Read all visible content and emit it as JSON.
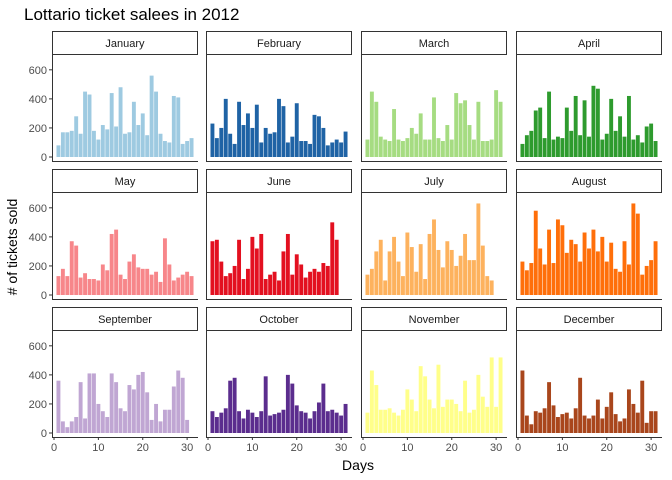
{
  "chart_data": {
    "type": "bar",
    "title": "Lottario ticket salees in 2012",
    "xlabel": "Days",
    "ylabel": "# of tickets sold",
    "xlim": [
      0,
      32
    ],
    "ylim": [
      0,
      640
    ],
    "x_ticks": [
      0,
      10,
      20,
      30
    ],
    "y_ticks": [
      0,
      200,
      400,
      600
    ],
    "grid": false,
    "legend": "none",
    "facets": [
      {
        "name": "January",
        "color": "#9ecae1",
        "values": [
          80,
          170,
          170,
          180,
          280,
          160,
          450,
          430,
          180,
          120,
          220,
          190,
          440,
          210,
          480,
          160,
          170,
          380,
          220,
          300,
          150,
          560,
          450,
          160,
          110,
          100,
          420,
          410,
          90,
          110,
          130
        ]
      },
      {
        "name": "February",
        "color": "#1f63a5",
        "values": [
          230,
          130,
          200,
          400,
          160,
          90,
          380,
          220,
          300,
          200,
          360,
          100,
          200,
          160,
          170,
          400,
          350,
          100,
          140,
          370,
          110,
          110,
          90,
          290,
          280,
          200,
          80,
          100,
          120,
          100,
          175
        ]
      },
      {
        "name": "March",
        "color": "#a6dc82",
        "values": [
          120,
          450,
          380,
          140,
          120,
          110,
          330,
          120,
          110,
          130,
          200,
          160,
          300,
          120,
          120,
          410,
          130,
          110,
          220,
          120,
          440,
          370,
          390,
          220,
          120,
          380,
          110,
          110,
          120,
          460,
          380
        ]
      },
      {
        "name": "April",
        "color": "#2e9b2e",
        "values": [
          90,
          150,
          180,
          320,
          340,
          130,
          450,
          120,
          140,
          130,
          340,
          180,
          420,
          150,
          390,
          140,
          490,
          470,
          120,
          160,
          400,
          180,
          280,
          140,
          420,
          120,
          150,
          100,
          210,
          230,
          110
        ]
      },
      {
        "name": "May",
        "color": "#f7868a",
        "values": [
          130,
          180,
          130,
          370,
          340,
          120,
          150,
          110,
          110,
          100,
          210,
          170,
          420,
          450,
          140,
          110,
          230,
          280,
          190,
          180,
          180,
          140,
          160,
          90,
          390,
          210,
          100,
          120,
          140,
          160,
          130
        ]
      },
      {
        "name": "June",
        "color": "#e31020",
        "values": [
          370,
          380,
          230,
          130,
          150,
          200,
          380,
          110,
          180,
          400,
          320,
          420,
          110,
          140,
          160,
          100,
          300,
          420,
          140,
          280,
          210,
          120,
          160,
          180,
          160,
          220,
          200,
          500,
          380
        ]
      },
      {
        "name": "July",
        "color": "#fdb25e",
        "values": [
          140,
          180,
          300,
          380,
          100,
          300,
          400,
          230,
          130,
          430,
          330,
          160,
          350,
          110,
          420,
          520,
          310,
          190,
          370,
          310,
          200,
          270,
          420,
          240,
          240,
          630,
          340,
          130,
          100
        ]
      },
      {
        "name": "August",
        "color": "#ff6f0a",
        "values": [
          230,
          170,
          220,
          580,
          320,
          210,
          450,
          220,
          520,
          480,
          290,
          380,
          350,
          230,
          430,
          320,
          450,
          300,
          400,
          230,
          360,
          180,
          160,
          370,
          210,
          630,
          560,
          140,
          200,
          240,
          370
        ]
      },
      {
        "name": "September",
        "color": "#c0a6d3",
        "values": [
          360,
          80,
          40,
          80,
          110,
          350,
          100,
          410,
          410,
          200,
          150,
          110,
          410,
          350,
          170,
          150,
          330,
          300,
          400,
          420,
          280,
          90,
          200,
          80,
          160,
          160,
          320,
          430,
          380,
          90
        ]
      },
      {
        "name": "October",
        "color": "#5b2d8e",
        "values": [
          150,
          110,
          140,
          170,
          360,
          380,
          150,
          100,
          160,
          140,
          110,
          150,
          390,
          120,
          130,
          140,
          160,
          400,
          340,
          190,
          150,
          140,
          100,
          150,
          210,
          340,
          150,
          160,
          140,
          120,
          200
        ]
      },
      {
        "name": "November",
        "color": "#ffff8a",
        "values": [
          140,
          430,
          330,
          160,
          160,
          170,
          140,
          120,
          160,
          300,
          230,
          150,
          460,
          390,
          230,
          170,
          470,
          180,
          230,
          230,
          200,
          150,
          360,
          140,
          160,
          400,
          250,
          180,
          520,
          180,
          520
        ]
      },
      {
        "name": "December",
        "color": "#a9461c",
        "values": [
          430,
          120,
          60,
          150,
          140,
          170,
          350,
          190,
          110,
          130,
          140,
          100,
          170,
          380,
          120,
          100,
          120,
          230,
          100,
          180,
          280,
          130,
          80,
          100,
          300,
          200,
          140,
          360,
          70,
          150,
          150
        ]
      }
    ]
  }
}
